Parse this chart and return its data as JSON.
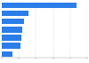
{
  "values": [
    22000000,
    7700000,
    6500000,
    6000000,
    5800000,
    5500000,
    3200000
  ],
  "bar_color": "#2b7de9",
  "background_color": "#ffffff",
  "grid_color": "#cccccc",
  "xlim": [
    0,
    25000000
  ],
  "figsize": [
    1.0,
    0.71
  ],
  "dpi": 100
}
